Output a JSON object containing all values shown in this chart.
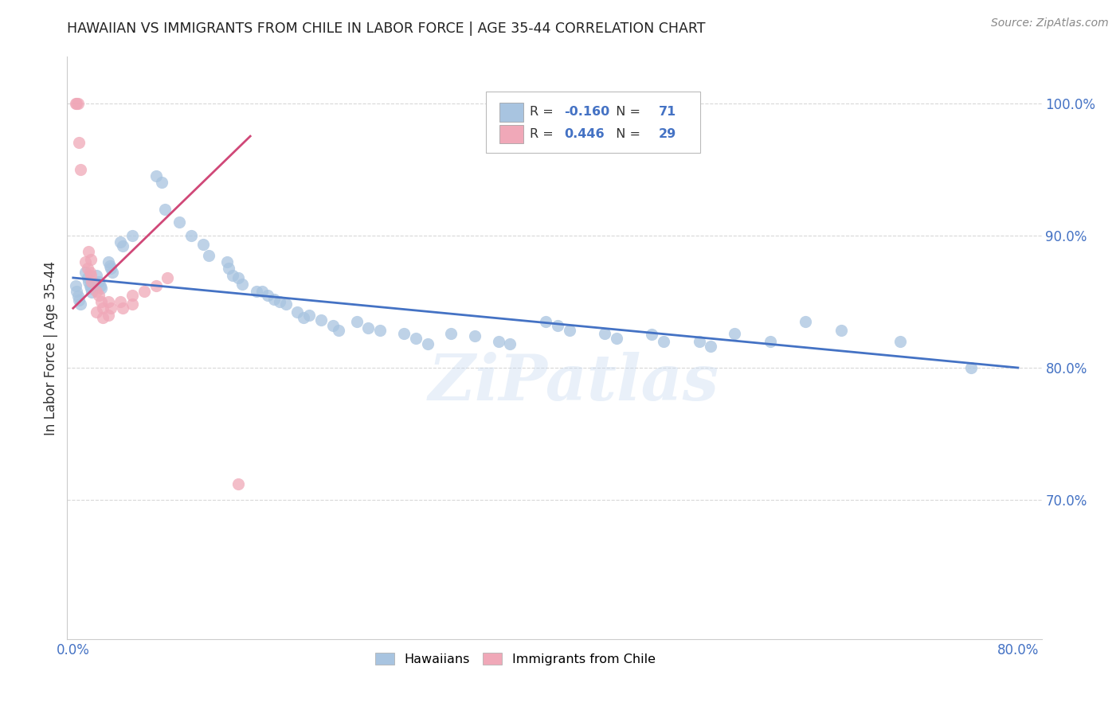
{
  "title": "HAWAIIAN VS IMMIGRANTS FROM CHILE IN LABOR FORCE | AGE 35-44 CORRELATION CHART",
  "source": "Source: ZipAtlas.com",
  "ylabel": "In Labor Force | Age 35-44",
  "xlim": [
    -0.005,
    0.82
  ],
  "ylim": [
    0.595,
    1.035
  ],
  "xticks": [
    0.0,
    0.1,
    0.2,
    0.3,
    0.4,
    0.5,
    0.6,
    0.7,
    0.8
  ],
  "xticklabels": [
    "0.0%",
    "",
    "",
    "",
    "",
    "",
    "",
    "",
    "80.0%"
  ],
  "yticks": [
    0.7,
    0.8,
    0.9,
    1.0
  ],
  "yticklabels": [
    "70.0%",
    "80.0%",
    "90.0%",
    "100.0%"
  ],
  "background_color": "#ffffff",
  "grid_color": "#d8d8d8",
  "hawaiian_color": "#a8c4e0",
  "chile_color": "#f0a8b8",
  "hawaiian_line_color": "#4472c4",
  "chile_line_color": "#d04878",
  "legend_R_hawaiian": "-0.160",
  "legend_N_hawaiian": "71",
  "legend_R_chile": "0.446",
  "legend_N_chile": "29",
  "watermark": "ZiPatlas",
  "hawaiian_x": [
    0.002,
    0.003,
    0.004,
    0.005,
    0.006,
    0.01,
    0.012,
    0.013,
    0.014,
    0.015,
    0.016,
    0.02,
    0.022,
    0.023,
    0.024,
    0.03,
    0.031,
    0.032,
    0.033,
    0.04,
    0.042,
    0.05,
    0.07,
    0.075,
    0.078,
    0.09,
    0.1,
    0.11,
    0.115,
    0.13,
    0.132,
    0.135,
    0.14,
    0.143,
    0.155,
    0.16,
    0.165,
    0.17,
    0.175,
    0.18,
    0.19,
    0.195,
    0.2,
    0.21,
    0.22,
    0.225,
    0.24,
    0.25,
    0.26,
    0.28,
    0.29,
    0.3,
    0.32,
    0.34,
    0.36,
    0.37,
    0.4,
    0.41,
    0.42,
    0.45,
    0.46,
    0.49,
    0.5,
    0.53,
    0.54,
    0.56,
    0.59,
    0.62,
    0.65,
    0.7,
    0.76
  ],
  "hawaiian_y": [
    0.862,
    0.858,
    0.854,
    0.851,
    0.848,
    0.872,
    0.868,
    0.865,
    0.862,
    0.86,
    0.857,
    0.87,
    0.865,
    0.862,
    0.86,
    0.88,
    0.877,
    0.875,
    0.872,
    0.895,
    0.892,
    0.9,
    0.945,
    0.94,
    0.92,
    0.91,
    0.9,
    0.893,
    0.885,
    0.88,
    0.875,
    0.87,
    0.868,
    0.863,
    0.858,
    0.858,
    0.855,
    0.852,
    0.85,
    0.848,
    0.842,
    0.838,
    0.84,
    0.836,
    0.832,
    0.828,
    0.835,
    0.83,
    0.828,
    0.826,
    0.822,
    0.818,
    0.826,
    0.824,
    0.82,
    0.818,
    0.835,
    0.832,
    0.828,
    0.826,
    0.822,
    0.825,
    0.82,
    0.82,
    0.816,
    0.826,
    0.82,
    0.835,
    0.828,
    0.82,
    0.8
  ],
  "chile_x": [
    0.002,
    0.003,
    0.004,
    0.01,
    0.012,
    0.014,
    0.015,
    0.016,
    0.02,
    0.022,
    0.024,
    0.025,
    0.03,
    0.032,
    0.04,
    0.042,
    0.05,
    0.06,
    0.07,
    0.08,
    0.02,
    0.025,
    0.14,
    0.005,
    0.006,
    0.013,
    0.015,
    0.03,
    0.05
  ],
  "chile_y": [
    1.0,
    1.0,
    1.0,
    0.88,
    0.875,
    0.872,
    0.87,
    0.865,
    0.858,
    0.855,
    0.85,
    0.845,
    0.85,
    0.845,
    0.85,
    0.845,
    0.855,
    0.858,
    0.862,
    0.868,
    0.842,
    0.838,
    0.712,
    0.97,
    0.95,
    0.888,
    0.882,
    0.84,
    0.848
  ]
}
